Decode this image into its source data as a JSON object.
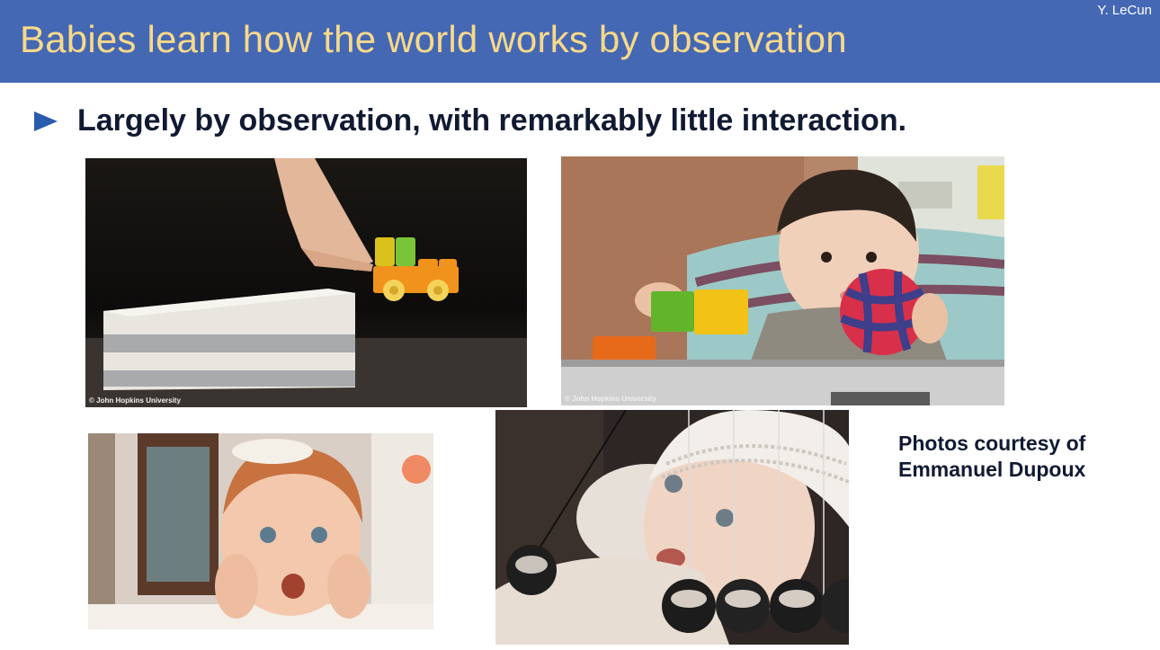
{
  "header": {
    "title": "Babies learn how the world works by observation",
    "author": "Y. LeCun"
  },
  "bullet": {
    "text": "Largely by observation, with remarkably little interaction."
  },
  "photos": {
    "toy_truck_experiment": {
      "caption": "© John Hopkins University"
    },
    "baby_with_toys": {
      "caption": "© John Hopkins University"
    }
  },
  "credit": {
    "line1": "Photos courtesy of",
    "line2": "Emmanuel Dupoux"
  },
  "colors": {
    "title_bar": "#4568b4",
    "title_text": "#f7d98a",
    "bullet_arrow": "#2a5cad",
    "body_text": "#111a33"
  }
}
